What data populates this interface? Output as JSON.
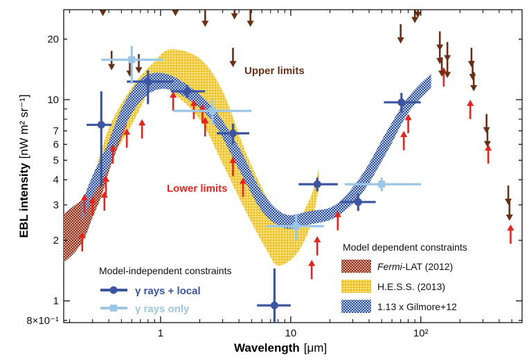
{
  "chart_data": {
    "type": "scatter",
    "xlabel": "Wavelength",
    "xunit": "[μm]",
    "ylabel": "EBL intensity",
    "yunit": "[nW m² sr⁻¹]",
    "xscale": "log",
    "yscale": "log",
    "xlim": [
      0.18,
      600
    ],
    "ylim": [
      0.78,
      28
    ],
    "x_ticks": [
      {
        "value": 1,
        "label": "1"
      },
      {
        "value": 10,
        "label": "10"
      },
      {
        "value": 100,
        "label": "10²"
      }
    ],
    "y_ticks": [
      {
        "value": 0.8,
        "label": "8×10⁻¹"
      },
      {
        "value": 1,
        "label": "1"
      },
      {
        "value": 2,
        "label": "2"
      },
      {
        "value": 3,
        "label": "3"
      },
      {
        "value": 4,
        "label": "4"
      },
      {
        "value": 5,
        "label": "5"
      },
      {
        "value": 6,
        "label": "6"
      },
      {
        "value": 7,
        "label": "7"
      },
      {
        "value": 10,
        "label": "10"
      },
      {
        "value": 20,
        "label": "20"
      }
    ],
    "annotations": {
      "upper": "Upper limits",
      "lower": "Lower limits"
    },
    "colors": {
      "upper": "#6b2f14",
      "lower": "#e8231e",
      "gamma_local": "#3b55a3",
      "gamma_only": "#9cc6e6",
      "fermi": "#8b2f1f",
      "hess": "#f2cc3a",
      "gilmore": "#3a5ea8"
    },
    "upper_limits": [
      [
        0.3,
        28
      ],
      [
        0.36,
        26
      ],
      [
        0.42,
        14
      ],
      [
        0.58,
        13
      ],
      [
        0.68,
        13.5
      ],
      [
        1.3,
        26
      ],
      [
        2.2,
        23
      ],
      [
        3.6,
        14.5
      ],
      [
        3.7,
        25
      ],
      [
        4.9,
        23
      ],
      [
        70,
        19
      ],
      [
        90,
        24
      ],
      [
        95,
        25.5
      ],
      [
        140,
        15
      ],
      [
        140,
        17.5
      ],
      [
        145,
        13
      ],
      [
        160,
        12.8
      ],
      [
        160,
        15.5
      ],
      [
        245,
        14.5
      ],
      [
        250,
        12.5
      ],
      [
        255,
        11
      ],
      [
        320,
        6.8
      ],
      [
        325,
        5.8
      ],
      [
        470,
        3
      ],
      [
        480,
        2.5
      ]
    ],
    "lower_limits": [
      [
        0.25,
        2.2
      ],
      [
        0.26,
        3.4
      ],
      [
        0.3,
        3.3
      ],
      [
        0.37,
        3.5
      ],
      [
        0.38,
        4.2
      ],
      [
        0.43,
        6
      ],
      [
        0.55,
        7.2
      ],
      [
        0.72,
        8
      ],
      [
        1.25,
        11
      ],
      [
        1.8,
        10
      ],
      [
        2.1,
        9.5
      ],
      [
        2.2,
        8.2
      ],
      [
        3.6,
        5.2
      ],
      [
        4.3,
        4.1
      ],
      [
        14.5,
        1.6
      ],
      [
        16,
        2.1
      ],
      [
        23,
        2.8
      ],
      [
        74,
        7
      ],
      [
        80,
        8.5
      ],
      [
        150,
        14.5
      ],
      [
        240,
        10
      ],
      [
        330,
        6
      ],
      [
        490,
        2.4
      ]
    ],
    "series": [
      {
        "name": "γ rays + local",
        "points": [
          {
            "x": 0.35,
            "y": 7.5,
            "xlo": 0.27,
            "xhi": 0.42,
            "ylo": 3.7,
            "yhi": 11
          },
          {
            "x": 0.8,
            "y": 12.3,
            "xlo": 0.55,
            "xhi": 1.25,
            "ylo": 9.5,
            "yhi": 14
          },
          {
            "x": 1.6,
            "y": 11,
            "xlo": 1.2,
            "xhi": 2.2,
            "ylo": 10.2,
            "yhi": 11.8
          },
          {
            "x": 3.6,
            "y": 6.8,
            "xlo": 2.7,
            "xhi": 4.8,
            "ylo": 6,
            "yhi": 7.6
          },
          {
            "x": 7.5,
            "y": 0.95,
            "xlo": 5.5,
            "xhi": 10,
            "ylo": 0.78,
            "yhi": 1.45
          },
          {
            "x": 16,
            "y": 3.8,
            "xlo": 11.5,
            "xhi": 23,
            "ylo": 3.5,
            "yhi": 4.1
          },
          {
            "x": 33,
            "y": 3.1,
            "xlo": 24,
            "xhi": 45,
            "ylo": 2.8,
            "yhi": 3.4
          },
          {
            "x": 71,
            "y": 9.7,
            "xlo": 52,
            "xhi": 100,
            "ylo": 8.6,
            "yhi": 10.8
          }
        ]
      },
      {
        "name": "γ rays only",
        "points": [
          {
            "x": 0.6,
            "y": 15.8,
            "xlo": 0.35,
            "xhi": 1.05,
            "ylo": 12,
            "yhi": 18.5
          },
          {
            "x": 2.5,
            "y": 8.8,
            "xlo": 1.25,
            "xhi": 5,
            "ylo": 7.5,
            "yhi": 10
          },
          {
            "x": 11,
            "y": 2.35,
            "xlo": 6.5,
            "xhi": 18,
            "ylo": 2,
            "yhi": 2.7
          },
          {
            "x": 50,
            "y": 3.8,
            "xlo": 26,
            "xhi": 100,
            "ylo": 3.5,
            "yhi": 4.1
          }
        ]
      }
    ],
    "bands": [
      {
        "name": "1.13 x Gilmore+12",
        "x": [
          0.25,
          0.3,
          0.4,
          0.5,
          0.7,
          1,
          1.5,
          2.5,
          4,
          6,
          9,
          14,
          22,
          35,
          55,
          80,
          120
        ],
        "ylo": [
          2.5,
          3.3,
          4.6,
          6.8,
          9.8,
          11.3,
          10.4,
          7.8,
          4.5,
          2.8,
          2.3,
          2.4,
          2.6,
          3.4,
          5.5,
          8.6,
          11.5
        ],
        "yhi": [
          3.1,
          4.2,
          6.2,
          9,
          12.6,
          13.6,
          12.2,
          9.2,
          5.8,
          3.5,
          2.7,
          2.8,
          3,
          4.2,
          7,
          10.3,
          13.5
        ]
      },
      {
        "name": "H.E.S.S. (2013)",
        "x": [
          0.3,
          0.4,
          0.6,
          0.9,
          1.2,
          2,
          3,
          4.5,
          6.5,
          8,
          11,
          14,
          16,
          16.5
        ],
        "ylo": [
          3.2,
          4.8,
          7.5,
          12,
          11,
          8,
          4.8,
          2.8,
          1.8,
          1.5,
          1.7,
          2.3,
          3.3,
          4
        ],
        "yhi": [
          3.9,
          7.2,
          11.5,
          15.5,
          17.8,
          16,
          11,
          5.5,
          3.3,
          2.7,
          2.5,
          3.2,
          4.2,
          4.6
        ]
      },
      {
        "name": "Fermi-LAT (2012)",
        "x": [
          0.18,
          0.22,
          0.26,
          0.3,
          0.35,
          0.42,
          0.55
        ],
        "ylo": [
          1.55,
          1.75,
          2.05,
          2.6,
          3.3,
          4.8,
          7.5
        ],
        "yhi": [
          2.7,
          3.0,
          3.25,
          3.6,
          4.5,
          6.8,
          9.5
        ]
      }
    ],
    "legend_left": {
      "title": "Model-independent constraints",
      "placement": "bottom-left",
      "items": [
        "γ rays + local",
        "γ rays only"
      ]
    },
    "legend_right": {
      "title": "Model dependent constraints",
      "placement": "bottom-right",
      "items": [
        {
          "prefix": "Fermi",
          "rest": "-LAT (2012)"
        },
        {
          "prefix": "",
          "rest": "H.E.S.S. (2013)"
        },
        {
          "prefix": "",
          "rest": "1.13 x Gilmore+12"
        }
      ]
    }
  }
}
